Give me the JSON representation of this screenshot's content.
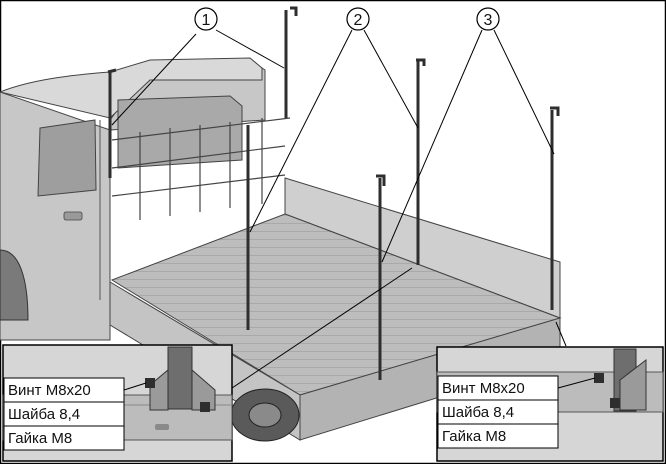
{
  "callouts": {
    "one": "1",
    "two": "2",
    "three": "3"
  },
  "left_detail": {
    "row1": "Винт М8х20",
    "row2": "Шайба 8,4",
    "row3": "Гайка М8"
  },
  "right_detail": {
    "row1": "Винт М8х20",
    "row2": "Шайба 8,4",
    "row3": "Гайка М8"
  }
}
